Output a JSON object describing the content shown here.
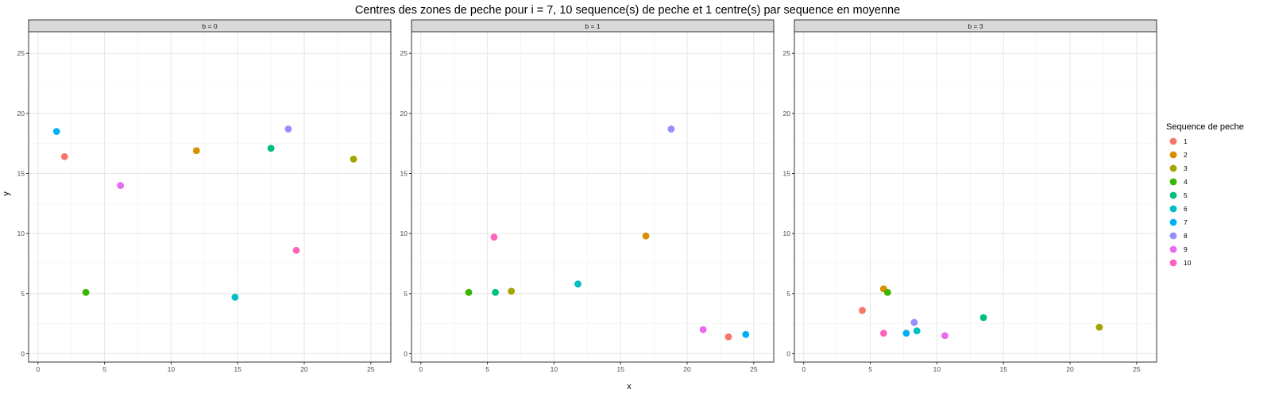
{
  "chart_data": {
    "type": "scatter",
    "title": "Centres des zones de peche pour i = 7, 10 sequence(s) de peche et 1 centre(s) par sequence en moyenne",
    "xlabel": "x",
    "ylabel": "y",
    "xlim": [
      -0.7,
      26.5
    ],
    "ylim": [
      -0.7,
      26.8
    ],
    "x_ticks": [
      0,
      5,
      10,
      15,
      20,
      25
    ],
    "y_ticks": [
      0,
      5,
      10,
      15,
      20,
      25
    ],
    "grid": true,
    "legend": {
      "title": "Sequence de peche",
      "position": "right"
    },
    "series": [
      {
        "name": "1",
        "color": "#F8766D"
      },
      {
        "name": "2",
        "color": "#D89000"
      },
      {
        "name": "3",
        "color": "#A3A500"
      },
      {
        "name": "4",
        "color": "#39B600"
      },
      {
        "name": "5",
        "color": "#00BF7D"
      },
      {
        "name": "6",
        "color": "#00BFC4"
      },
      {
        "name": "7",
        "color": "#00B0F6"
      },
      {
        "name": "8",
        "color": "#9590FF"
      },
      {
        "name": "9",
        "color": "#E76BF3"
      },
      {
        "name": "10",
        "color": "#FF62BC"
      }
    ],
    "panels": [
      {
        "label": "b = 0",
        "points": [
          {
            "seq": "1",
            "x": 2.0,
            "y": 16.4
          },
          {
            "seq": "2",
            "x": 11.9,
            "y": 16.9
          },
          {
            "seq": "3",
            "x": 23.7,
            "y": 16.2
          },
          {
            "seq": "4",
            "x": 3.6,
            "y": 5.1
          },
          {
            "seq": "5",
            "x": 17.5,
            "y": 17.1
          },
          {
            "seq": "6",
            "x": 14.8,
            "y": 4.7
          },
          {
            "seq": "7",
            "x": 1.4,
            "y": 18.5
          },
          {
            "seq": "8",
            "x": 18.8,
            "y": 18.7
          },
          {
            "seq": "9",
            "x": 6.2,
            "y": 14.0
          },
          {
            "seq": "10",
            "x": 19.4,
            "y": 8.6
          }
        ]
      },
      {
        "label": "b = 1",
        "points": [
          {
            "seq": "1",
            "x": 23.1,
            "y": 1.4
          },
          {
            "seq": "2",
            "x": 16.9,
            "y": 9.8
          },
          {
            "seq": "3",
            "x": 6.8,
            "y": 5.2
          },
          {
            "seq": "4",
            "x": 3.6,
            "y": 5.1
          },
          {
            "seq": "5",
            "x": 5.6,
            "y": 5.1
          },
          {
            "seq": "6",
            "x": 11.8,
            "y": 5.8
          },
          {
            "seq": "7",
            "x": 24.4,
            "y": 1.6
          },
          {
            "seq": "8",
            "x": 18.8,
            "y": 18.7
          },
          {
            "seq": "9",
            "x": 21.2,
            "y": 2.0
          },
          {
            "seq": "10",
            "x": 5.5,
            "y": 9.7
          }
        ]
      },
      {
        "label": "b = 3",
        "points": [
          {
            "seq": "1",
            "x": 4.4,
            "y": 3.6
          },
          {
            "seq": "2",
            "x": 6.0,
            "y": 5.4
          },
          {
            "seq": "3",
            "x": 22.2,
            "y": 2.2
          },
          {
            "seq": "4",
            "x": 6.3,
            "y": 5.1
          },
          {
            "seq": "5",
            "x": 13.5,
            "y": 3.0
          },
          {
            "seq": "6",
            "x": 8.5,
            "y": 1.9
          },
          {
            "seq": "7",
            "x": 7.7,
            "y": 1.7
          },
          {
            "seq": "8",
            "x": 8.3,
            "y": 2.6
          },
          {
            "seq": "9",
            "x": 10.6,
            "y": 1.5
          },
          {
            "seq": "10",
            "x": 6.0,
            "y": 1.7
          }
        ]
      }
    ]
  }
}
